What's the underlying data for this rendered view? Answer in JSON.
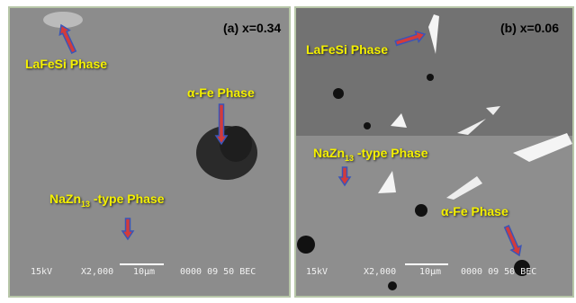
{
  "panels": [
    {
      "tag": "(a) x=0.34",
      "labels": {
        "lafesi": "LaFeSi Phase",
        "alpha_fe": "α-Fe Phase",
        "nazn": {
          "main": "NaZn",
          "sub": "13",
          "rest": " -type Phase"
        }
      },
      "footer": {
        "kv": "15kV",
        "mag": "X2,000",
        "scale": "10μm",
        "code": "0000 09 50 BEC"
      }
    },
    {
      "tag": "(b) x=0.06",
      "labels": {
        "lafesi": "LaFeSi Phase",
        "alpha_fe": "α-Fe Phase",
        "nazn": {
          "main": "NaZn",
          "sub": "13",
          "rest": " -type Phase"
        }
      },
      "footer": {
        "kv": "15kV",
        "mag": "X2,000",
        "scale": "10μm",
        "code": "0000 09 50 BEC"
      }
    }
  ]
}
